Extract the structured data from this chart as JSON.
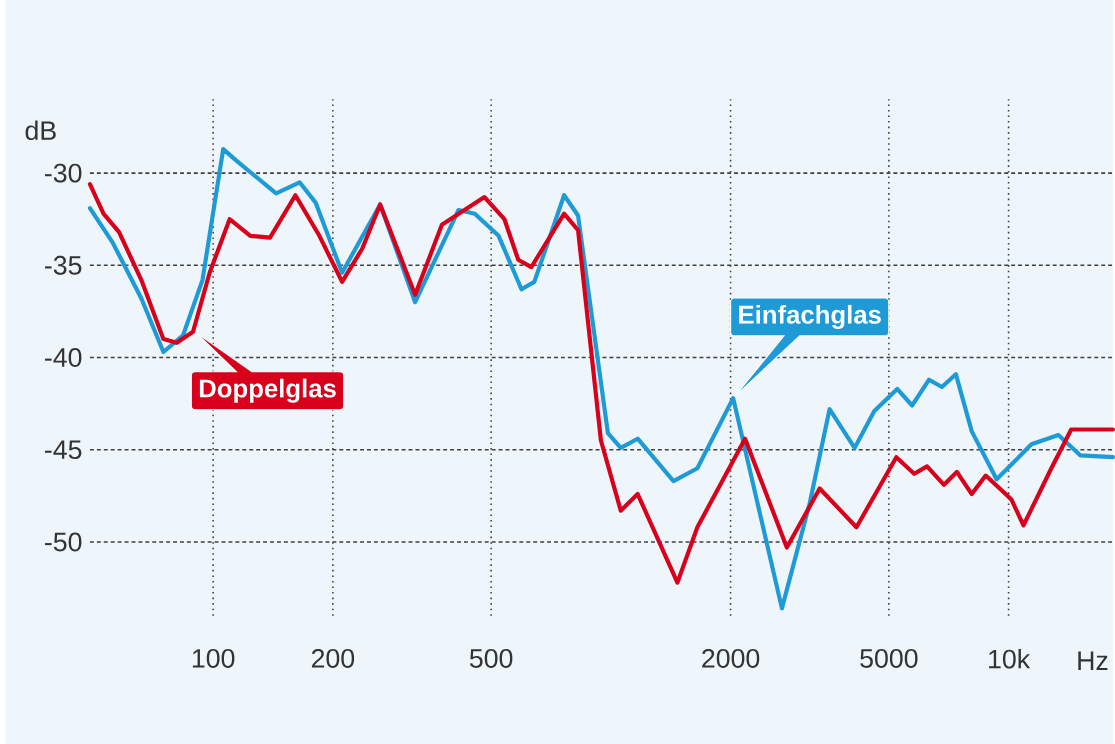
{
  "chart_data": {
    "type": "line",
    "xlabel": "Hz",
    "ylabel": "dB",
    "log": "x",
    "grid": true,
    "xlim": [
      49,
      18300
    ],
    "ylim": [
      -54,
      -26
    ],
    "xticks": [
      100,
      200,
      500,
      2000,
      5000,
      {
        "value": 10000,
        "label": "10k"
      }
    ],
    "yticks": [
      -30,
      -35,
      -40,
      -45,
      -50
    ],
    "series": [
      {
        "name": "Einfachglas",
        "color": "#1e9bd7",
        "x": [
          49,
          56,
          66,
          75,
          84,
          94,
          106,
          114,
          144,
          165,
          181,
          211,
          263,
          322,
          414,
          455,
          522,
          596,
          642,
          763,
          827,
          983,
          1059,
          1168,
          1437,
          1650,
          2030,
          2692,
          3162,
          3548,
          4100,
          4597,
          5248,
          5720,
          6310,
          6800,
          7370,
          8080,
          9330,
          10170,
          11410,
          13340,
          15140,
          18300
        ],
        "values": [
          -31.9,
          -33.8,
          -36.8,
          -39.7,
          -38.8,
          -35.8,
          -28.7,
          -29.3,
          -31.1,
          -30.5,
          -31.6,
          -35.4,
          -31.7,
          -37.0,
          -32.0,
          -32.2,
          -33.4,
          -36.3,
          -35.9,
          -31.2,
          -32.3,
          -44.1,
          -44.9,
          -44.4,
          -46.7,
          -46.0,
          -42.2,
          -53.6,
          -47.9,
          -42.8,
          -44.9,
          -42.9,
          -41.7,
          -42.6,
          -41.2,
          -41.6,
          -40.9,
          -44.0,
          -46.6,
          -45.8,
          -44.7,
          -44.2,
          -45.3,
          -45.4
        ]
      },
      {
        "name": "Doppelglas",
        "color": "#d9001b",
        "x": [
          49,
          53,
          58,
          66,
          75,
          81,
          89,
          98,
          110,
          124,
          139,
          161,
          185,
          211,
          237,
          263,
          322,
          376,
          481,
          540,
          585,
          631,
          763,
          827,
          944,
          1059,
          1168,
          1470,
          1650,
          2175,
          2770,
          3350,
          4145,
          5220,
          5790,
          6237,
          6880,
          7413,
          8080,
          8760,
          10170,
          10900,
          12810,
          14370,
          18300
        ],
        "values": [
          -30.6,
          -32.2,
          -33.2,
          -35.8,
          -39.0,
          -39.2,
          -38.6,
          -35.4,
          -32.5,
          -33.4,
          -33.5,
          -31.2,
          -33.4,
          -35.9,
          -34.1,
          -31.7,
          -36.6,
          -32.8,
          -31.3,
          -32.5,
          -34.7,
          -35.1,
          -32.2,
          -33.1,
          -44.5,
          -48.3,
          -47.4,
          -52.2,
          -49.2,
          -44.4,
          -50.3,
          -47.1,
          -49.2,
          -45.4,
          -46.3,
          -45.9,
          -46.9,
          -46.2,
          -47.4,
          -46.4,
          -47.7,
          -49.1,
          -46.0,
          -43.9,
          -43.9
        ]
      }
    ]
  }
}
